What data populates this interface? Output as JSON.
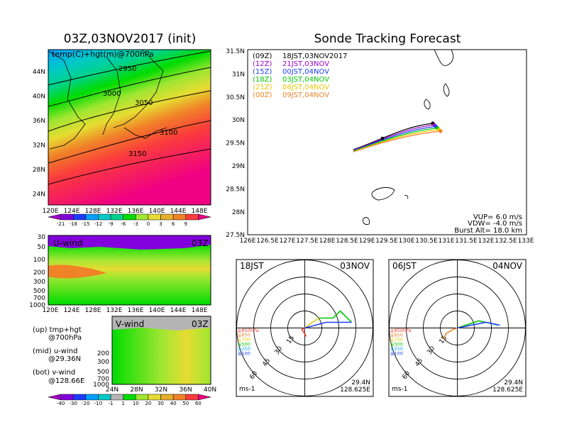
{
  "left": {
    "title": "03Z,03NOV2017 (init)",
    "map_label": "temp(C)+hgt(m)@700hPa",
    "map_lat_ticks": [
      "44N",
      "40N",
      "36N",
      "32N",
      "28N",
      "24N"
    ],
    "map_lon_ticks": [
      "120E",
      "124E",
      "128E",
      "132E",
      "136E",
      "140E",
      "144E",
      "148E"
    ],
    "contours": [
      "2950",
      "3000",
      "3050",
      "3100",
      "3150"
    ],
    "temp_colorbar": [
      "-21",
      "-18",
      "-15",
      "-12",
      "-9",
      "-6",
      "-3",
      "0",
      "3",
      "6",
      "9"
    ],
    "temp_colors": [
      "#a000c8",
      "#8200dc",
      "#1e3cff",
      "#00a0ff",
      "#00c8c8",
      "#00d28c",
      "#00dc00",
      "#a0e632",
      "#e6dc32",
      "#e6af2d",
      "#f08228",
      "#fa3c3c",
      "#f00082"
    ],
    "uwind_label": "U-wind",
    "uwind_time": "03Z",
    "uwind_y_ticks": [
      "30",
      "50",
      "100",
      "200",
      "300",
      "500",
      "700",
      "1000"
    ],
    "uwind_x_ticks": [
      "120E",
      "124E",
      "128E",
      "132E",
      "136E",
      "140E",
      "144E",
      "148E"
    ],
    "vwind_label": "V-wind",
    "vwind_time": "03Z",
    "vwind_y_ticks": [
      "200",
      "300",
      "500",
      "700",
      "1000"
    ],
    "vwind_x_ticks": [
      "24N",
      "28N",
      "32N",
      "36N",
      "40N"
    ],
    "legend_lines": [
      "(up) tmp+hgt",
      "@700hPa",
      "(mid) u-wind",
      "@29.36N",
      "(bot) v-wind",
      "@128.66E"
    ],
    "wind_colorbar": [
      "-40",
      "-30",
      "-20",
      "-10",
      "-1",
      "1",
      "10",
      "20",
      "30",
      "40",
      "50",
      "60"
    ],
    "wind_colors": [
      "#a000c8",
      "#8200dc",
      "#1e3cff",
      "#00a0ff",
      "#00c8c8",
      "#b4b4b4",
      "#00dc00",
      "#a0e632",
      "#e6dc32",
      "#e6af2d",
      "#f08228",
      "#fa3c3c",
      "#f00082"
    ]
  },
  "right": {
    "title": "Sonde Tracking Forecast",
    "lat_ticks": [
      "31.5N",
      "31N",
      "30.5N",
      "30N",
      "29.5N",
      "29N",
      "28.5N",
      "28N",
      "27.5N"
    ],
    "lon_ticks": [
      "126E",
      "126.5E",
      "127E",
      "127.5E",
      "128E",
      "128.5E",
      "129E",
      "129.5E",
      "130E",
      "130.5E",
      "131E",
      "131.5E",
      "132E",
      "132.5E",
      "133E"
    ],
    "tracks": [
      {
        "code": "(09Z)",
        "label": "18JST,03NOV2017",
        "color": "#000000"
      },
      {
        "code": "(12Z)",
        "label": "21JST,03NOV",
        "color": "#a000c8"
      },
      {
        "code": "(15Z)",
        "label": "00JST,04NOV",
        "color": "#1e3cff"
      },
      {
        "code": "(18Z)",
        "label": "03JST,04NOV",
        "color": "#00c800"
      },
      {
        "code": "(21Z)",
        "label": "06JST,04NOV",
        "color": "#e6c800"
      },
      {
        "code": "(00Z)",
        "label": "09JST,04NOV",
        "color": "#f08228"
      }
    ],
    "info": [
      "VUP= 6.0 m/s",
      "VDW= -4.0 m/s",
      "Burst Alt= 18.0 km"
    ]
  },
  "hodographs": [
    {
      "time": "18JST",
      "date": "03NOV",
      "lat": "29.4N",
      "lon": "128.625E",
      "unit": "ms-1",
      "rings": [
        "15",
        "30",
        "45",
        "60"
      ]
    },
    {
      "time": "06JST",
      "date": "04NOV",
      "lat": "29.4N",
      "lon": "128.625E",
      "unit": "ms-1",
      "rings": [
        "15",
        "30",
        "45",
        "60"
      ]
    }
  ],
  "hodo_levels": [
    {
      "label": "≧850hPa",
      "color": "#f03c28"
    },
    {
      "label": "≦850",
      "color": "#f08228"
    },
    {
      "label": "≦700",
      "color": "#e6c800"
    },
    {
      "label": "≦500",
      "color": "#00c800"
    },
    {
      "label": "≦250",
      "color": "#00a0ff"
    },
    {
      "label": "≦100",
      "color": "#1e3cff"
    }
  ]
}
